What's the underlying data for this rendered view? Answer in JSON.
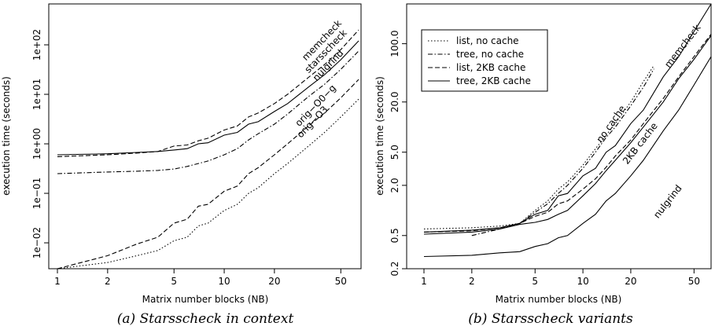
{
  "chart_data": [
    {
      "type": "line",
      "caption": "(a) Starsscheck in context",
      "xlabel": "Matrix number blocks (NB)",
      "ylabel": "execution time (seconds)",
      "x_scale": "log",
      "y_scale": "log",
      "xlim": [
        1,
        64
      ],
      "ylim": [
        0.003,
        500
      ],
      "x_ticks": [
        1,
        2,
        5,
        10,
        20,
        50
      ],
      "y_ticks": [
        0.01,
        0.1,
        1,
        10,
        100
      ],
      "x_tick_labels": [
        "1",
        "2",
        "5",
        "10",
        "20",
        "50"
      ],
      "y_tick_labels": [
        "1e−02",
        "1e−01",
        "1e+00",
        "1e+01",
        "1e+02"
      ],
      "grid": false,
      "series": [
        {
          "name": "memcheck",
          "style": "dashed",
          "x": [
            1,
            2,
            3,
            4,
            5,
            6,
            7,
            8,
            10,
            12,
            14,
            16,
            20,
            24,
            32,
            40,
            50,
            64
          ],
          "y": [
            0.55,
            0.6,
            0.65,
            0.7,
            0.9,
            0.95,
            1.15,
            1.3,
            1.9,
            2.3,
            3.5,
            4.2,
            6.5,
            10,
            22,
            40,
            80,
            200
          ]
        },
        {
          "name": "starsscheck",
          "style": "solid",
          "x": [
            1,
            2,
            3,
            4,
            5,
            6,
            7,
            8,
            10,
            12,
            14,
            16,
            20,
            24,
            32,
            40,
            50,
            64
          ],
          "y": [
            0.6,
            0.63,
            0.67,
            0.7,
            0.75,
            0.8,
            1.0,
            1.05,
            1.5,
            1.7,
            2.5,
            2.8,
            4.5,
            6.5,
            14,
            25,
            50,
            120
          ]
        },
        {
          "name": "nulgrind",
          "style": "dashdot",
          "x": [
            1,
            2,
            3,
            4,
            5,
            6,
            7,
            8,
            10,
            12,
            14,
            16,
            20,
            24,
            32,
            40,
            50,
            64
          ],
          "y": [
            0.25,
            0.27,
            0.28,
            0.29,
            0.31,
            0.35,
            0.4,
            0.45,
            0.6,
            0.8,
            1.2,
            1.6,
            2.5,
            4,
            9,
            16,
            32,
            75
          ]
        },
        {
          "name": "orig−O0−g",
          "style": "dashed",
          "x": [
            1,
            2,
            3,
            4,
            5,
            6,
            7,
            8,
            10,
            12,
            14,
            16,
            20,
            24,
            32,
            40,
            50,
            64
          ],
          "y": [
            0.003,
            0.0055,
            0.0095,
            0.013,
            0.025,
            0.03,
            0.055,
            0.06,
            0.11,
            0.14,
            0.25,
            0.33,
            0.6,
            1.0,
            2.3,
            4.2,
            8.5,
            20
          ]
        },
        {
          "name": "orig−O3",
          "style": "dotted",
          "x": [
            1,
            2,
            3,
            4,
            5,
            6,
            7,
            8,
            10,
            12,
            14,
            16,
            20,
            24,
            32,
            40,
            50,
            64
          ],
          "y": [
            0.003,
            0.004,
            0.0055,
            0.007,
            0.011,
            0.013,
            0.022,
            0.025,
            0.045,
            0.06,
            0.1,
            0.13,
            0.25,
            0.4,
            0.9,
            1.7,
            3.5,
            8
          ]
        }
      ]
    },
    {
      "type": "line",
      "caption": "(b) Starsscheck variants",
      "xlabel": "Matrix number blocks (NB)",
      "ylabel": "execution time (seconds)",
      "x_scale": "log",
      "y_scale": "log",
      "xlim": [
        1,
        64
      ],
      "ylim": [
        0.2,
        300
      ],
      "x_ticks": [
        1,
        2,
        5,
        10,
        20,
        50
      ],
      "y_ticks": [
        0.2,
        0.5,
        2.0,
        5.0,
        20.0,
        100.0
      ],
      "x_tick_labels": [
        "1",
        "2",
        "5",
        "10",
        "20",
        "50"
      ],
      "y_tick_labels": [
        "0.2",
        "0.5",
        "2.0",
        "5.0",
        "20.0",
        "100.0"
      ],
      "grid": false,
      "legend_position": "top-left",
      "annotations": [
        "memcheck",
        "no cache",
        "2KB cache",
        "nulgrind"
      ],
      "series": [
        {
          "name": "list, no cache",
          "style": "dotted",
          "x": [
            1,
            2,
            3,
            4,
            5,
            6,
            7,
            8,
            10,
            12,
            14,
            16,
            20,
            24,
            28
          ],
          "y": [
            0.6,
            0.62,
            0.65,
            0.7,
            1.0,
            1.3,
            1.8,
            2.2,
            3.5,
            5.5,
            8,
            11,
            20,
            35,
            55
          ]
        },
        {
          "name": "tree, no cache",
          "style": "dashdot",
          "x": [
            2,
            3,
            4,
            5,
            6,
            7,
            8,
            10,
            12,
            14,
            16,
            20,
            24,
            28
          ],
          "y": [
            0.5,
            0.6,
            0.7,
            0.95,
            1.2,
            1.6,
            2.0,
            3.2,
            5,
            7.5,
            10,
            18,
            30,
            50
          ]
        },
        {
          "name": "list, 2KB cache",
          "style": "dashed",
          "x": [
            1,
            2,
            3,
            4,
            5,
            6,
            7,
            8,
            10,
            12,
            14,
            16,
            20,
            24,
            32,
            40,
            50,
            64
          ],
          "y": [
            0.55,
            0.57,
            0.62,
            0.7,
            0.85,
            0.95,
            1.2,
            1.3,
            1.8,
            2.4,
            3.3,
            4.5,
            7,
            11,
            22,
            40,
            70,
            130
          ]
        },
        {
          "name": "tree, 2KB cache",
          "style": "solid",
          "x": [
            1,
            2,
            3,
            4,
            5,
            6,
            7,
            8,
            10,
            12,
            14,
            16,
            20,
            24,
            32,
            40,
            50,
            64
          ],
          "y": [
            0.52,
            0.55,
            0.6,
            0.68,
            0.72,
            0.78,
            0.9,
            1.0,
            1.5,
            2.1,
            3.0,
            4.0,
            6.5,
            10,
            20,
            38,
            65,
            125
          ]
        },
        {
          "name": "memcheck",
          "style": "solid",
          "x": [
            1,
            2,
            3,
            4,
            5,
            6,
            7,
            8,
            10,
            12,
            14,
            16,
            20,
            24,
            32,
            40,
            50,
            64
          ],
          "y": [
            0.55,
            0.58,
            0.62,
            0.7,
            0.9,
            1.0,
            1.5,
            1.6,
            2.6,
            3.2,
            5,
            6,
            11,
            16,
            40,
            70,
            140,
            300
          ]
        },
        {
          "name": "nulgrind",
          "style": "solid",
          "x": [
            1,
            2,
            3,
            4,
            5,
            6,
            7,
            8,
            10,
            12,
            14,
            16,
            20,
            24,
            32,
            40,
            50,
            64
          ],
          "y": [
            0.28,
            0.29,
            0.31,
            0.32,
            0.37,
            0.4,
            0.47,
            0.5,
            0.7,
            0.9,
            1.3,
            1.6,
            2.6,
            4,
            9,
            16,
            32,
            70
          ]
        }
      ]
    }
  ]
}
